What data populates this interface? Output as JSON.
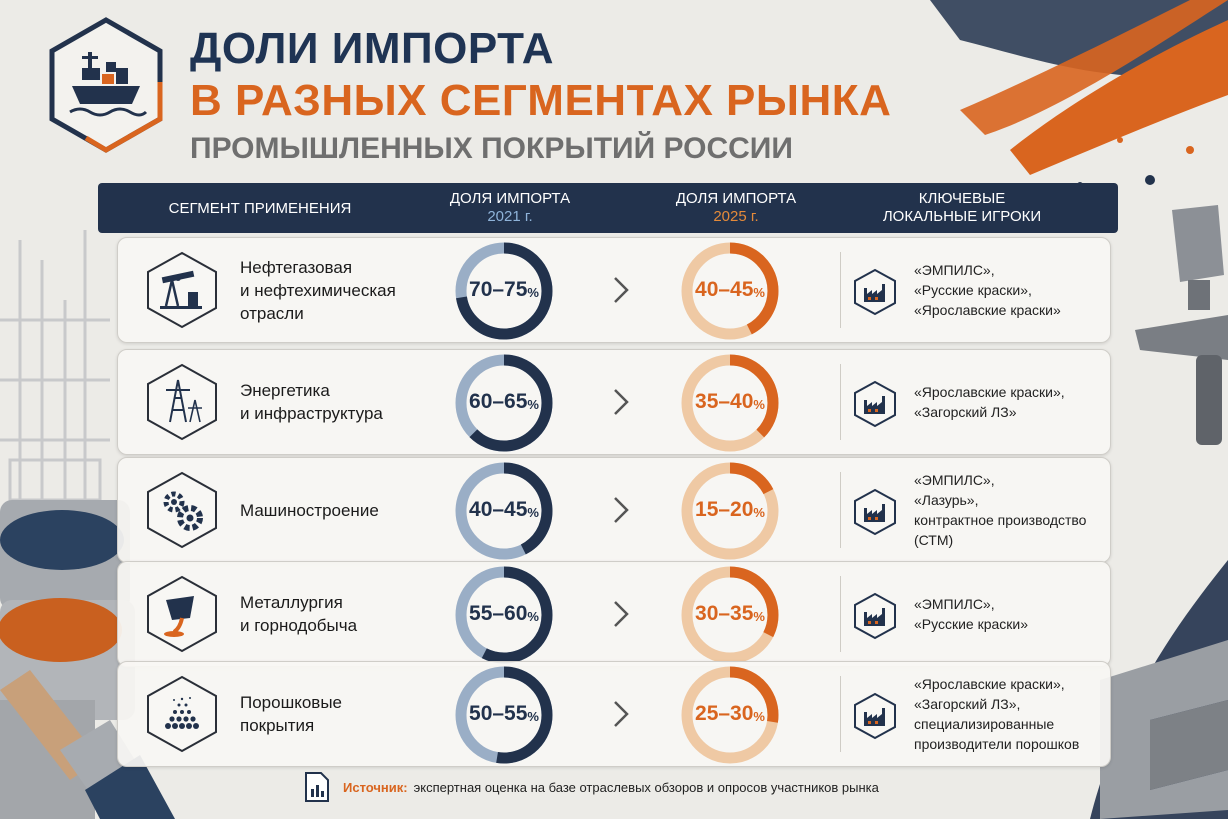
{
  "header": {
    "title_line1": "ДОЛИ ИМПОРТА",
    "title_line2": "В РАЗНЫХ СЕГМЕНТАХ РЫНКА",
    "title_line3": "ПРОМЫШЛЕННЫХ ПОКРЫТИЙ РОССИИ",
    "logo_icon": "cargo-ship-icon"
  },
  "columns": {
    "segment": "СЕГМЕНТ ПРИМЕНЕНИЯ",
    "import_label": "ДОЛЯ ИМПОРТА",
    "year_2021": "2021 г.",
    "year_2025": "2025 г.",
    "players_line1": "КЛЮЧЕВЫЕ",
    "players_line2": "ЛОКАЛЬНЫЕ ИГРОКИ"
  },
  "colors": {
    "navy": "#22324c",
    "orange": "#d9651f",
    "light_blue": "#9aaec6",
    "light_orange": "#efc9a4"
  },
  "rows": [
    {
      "segment_lines": [
        "Нефтегазовая",
        "и нефтехимическая",
        "отрасли"
      ],
      "icon": "oil-pump-icon",
      "v2021": "70–75",
      "v2025": "40–45",
      "players": [
        "«ЭМПИЛС»,",
        "«Русские краски»,",
        "«Ярославские краски»"
      ]
    },
    {
      "segment_lines": [
        "Энергетика",
        "и инфраструктура"
      ],
      "icon": "power-tower-icon",
      "v2021": "60–65",
      "v2025": "35–40",
      "players": [
        "«Ярославские краски»,",
        "«Загорский ЛЗ»"
      ]
    },
    {
      "segment_lines": [
        "Машиностроение"
      ],
      "icon": "gears-icon",
      "v2021": "40–45",
      "v2025": "15–20",
      "players": [
        "«ЭМПИЛС»,",
        "«Лазурь»,",
        "контрактное производство",
        "(СТМ)"
      ]
    },
    {
      "segment_lines": [
        "Металлургия",
        "и горнодобыча"
      ],
      "icon": "molten-metal-ladle-icon",
      "v2021": "55–60",
      "v2025": "30–35",
      "players": [
        "«ЭМПИЛС»,",
        "«Русские краски»"
      ]
    },
    {
      "segment_lines": [
        "Порошковые",
        "покрытия"
      ],
      "icon": "powder-particles-icon",
      "v2021": "50–55",
      "v2025": "25–30",
      "players": [
        "«Ярославские краски»,",
        "«Загорский ЛЗ»,",
        "специализированные",
        "производители порошков"
      ]
    }
  ],
  "pct_sign": "%",
  "source": {
    "label": "Источник:",
    "text": "экспертная оценка  на базе отраслевых обзоров и опросов участников рынка",
    "icon": "document-chart-icon"
  },
  "chart_data": {
    "type": "donut-table",
    "categories": [
      "Нефтегазовая и нефтехимическая отрасли",
      "Энергетика и инфраструктура",
      "Машиностроение",
      "Металлургия и горнодобыча",
      "Порошковые покрытия"
    ],
    "series": [
      {
        "name": "2021 г.",
        "ranges": [
          [
            70,
            75
          ],
          [
            60,
            65
          ],
          [
            40,
            45
          ],
          [
            55,
            60
          ],
          [
            50,
            55
          ]
        ]
      },
      {
        "name": "2025 г.",
        "ranges": [
          [
            40,
            45
          ],
          [
            35,
            40
          ],
          [
            15,
            20
          ],
          [
            30,
            35
          ],
          [
            25,
            30
          ]
        ]
      }
    ],
    "unit": "%"
  }
}
